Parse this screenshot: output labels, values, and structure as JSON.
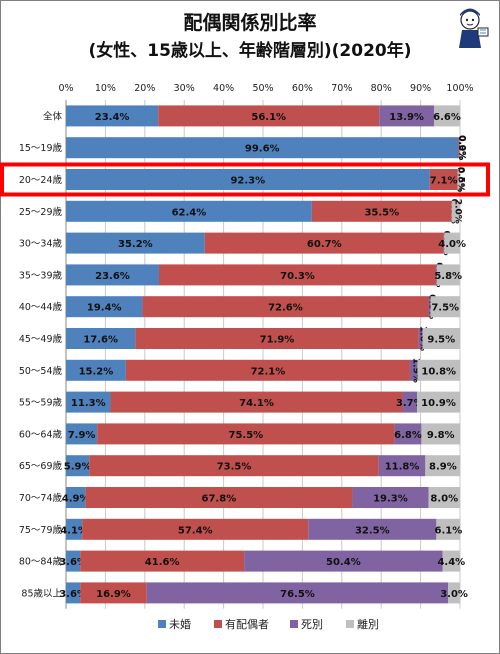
{
  "chart_data": {
    "type": "bar",
    "stacked": true,
    "orientation": "horizontal",
    "title": "配偶関係別比率",
    "subtitle": "(女性、15歳以上、年齢階層別)(2020年)",
    "x_ticks": [
      "0%",
      "10%",
      "20%",
      "30%",
      "40%",
      "50%",
      "60%",
      "70%",
      "80%",
      "90%",
      "100%"
    ],
    "xlim": [
      0,
      100
    ],
    "grid": true,
    "legend_position": "bottom",
    "categories": [
      "全体",
      "15～19歳",
      "20～24歳",
      "25～29歳",
      "30～34歳",
      "35～39歳",
      "40～44歳",
      "45～49歳",
      "50～54歳",
      "55～59歳",
      "60～64歳",
      "65～69歳",
      "70～74歳",
      "75～79歳",
      "80～84歳",
      "85歳以上"
    ],
    "highlight_category": "20～24歳",
    "highlight_color": "#ff0000",
    "series": [
      {
        "name": "未婚",
        "color": "#4f81bd",
        "values": [
          23.4,
          99.6,
          92.3,
          62.4,
          35.2,
          23.6,
          19.4,
          17.6,
          15.2,
          11.3,
          7.9,
          5.9,
          4.9,
          4.1,
          3.6,
          3.6
        ],
        "labels": [
          "23.4%",
          "99.6%",
          "92.3%",
          "62.4%",
          "35.2%",
          "23.6%",
          "19.4%",
          "17.6%",
          "15.2%",
          "11.3%",
          "7.9%",
          "5.9%",
          "4.9%",
          "4.1%",
          "3.6%",
          "3.6%"
        ]
      },
      {
        "name": "有配偶者",
        "color": "#c0504d",
        "values": [
          56.1,
          0.3,
          7.1,
          35.5,
          60.7,
          70.3,
          72.6,
          71.9,
          72.1,
          74.1,
          75.5,
          73.5,
          67.8,
          57.4,
          41.6,
          16.9
        ],
        "labels": [
          "56.1%",
          "0.3%",
          "7.1%",
          "35.5%",
          "60.7%",
          "70.3%",
          "72.6%",
          "71.9%",
          "72.1%",
          "74.1%",
          "75.5%",
          "73.5%",
          "67.8%",
          "57.4%",
          "41.6%",
          "16.9%"
        ]
      },
      {
        "name": "死別",
        "color": "#8064a2",
        "values": [
          13.9,
          0.0,
          0.0,
          0.0,
          0.1,
          0.2,
          0.5,
          1.0,
          1.9,
          3.7,
          6.8,
          11.8,
          19.3,
          32.5,
          50.4,
          76.5
        ],
        "labels": [
          "13.9%",
          "0.0%",
          "0.0%",
          "0.0%",
          "0.1%",
          "0.2%",
          "0.5%",
          "1.0%",
          "1.9%",
          "3.7%",
          "6.8%",
          "11.8%",
          "19.3%",
          "32.5%",
          "50.4%",
          "76.5%"
        ]
      },
      {
        "name": "離別",
        "color": "#bfbfbf",
        "values": [
          6.6,
          0.0,
          0.5,
          2.0,
          4.0,
          5.8,
          7.5,
          9.5,
          10.8,
          10.9,
          9.8,
          8.9,
          8.0,
          6.1,
          4.4,
          3.0
        ],
        "labels": [
          "6.6%",
          "0.0%",
          "0.5%",
          "2.0%",
          "4.0%",
          "5.8%",
          "7.5%",
          "9.5%",
          "10.8%",
          "10.9%",
          "9.8%",
          "8.9%",
          "8.0%",
          "6.1%",
          "4.4%",
          "3.0%"
        ]
      }
    ]
  }
}
